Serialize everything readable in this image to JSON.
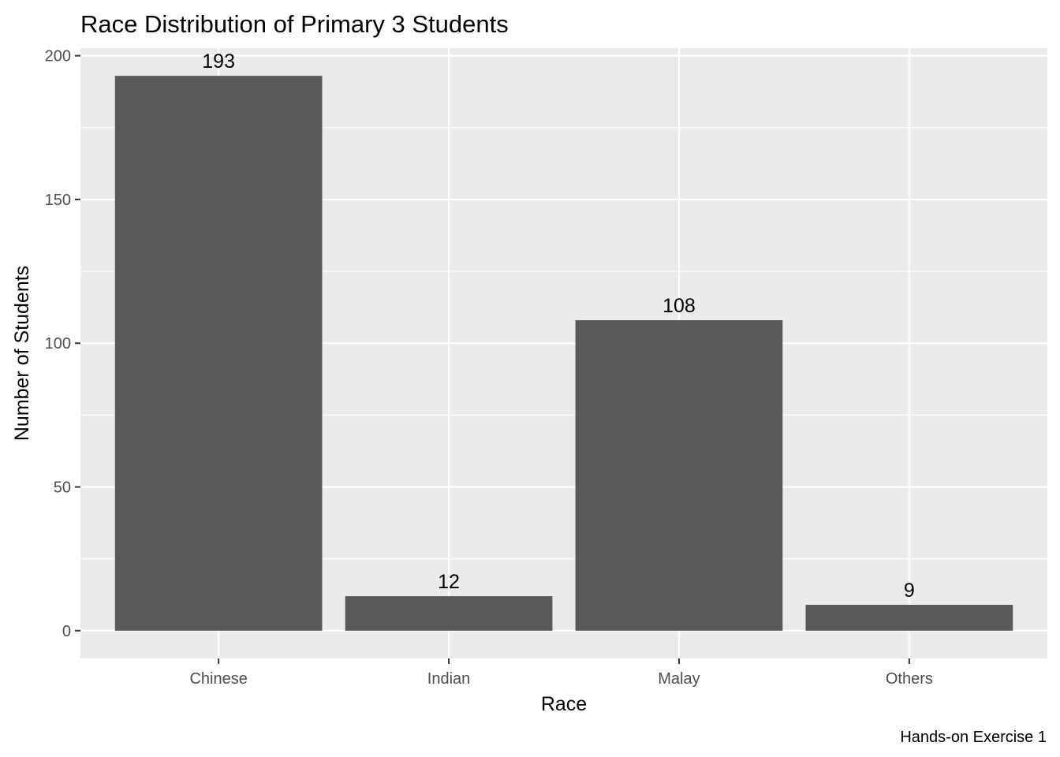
{
  "chart_data": {
    "type": "bar",
    "title": "Race Distribution of Primary 3 Students",
    "xlabel": "Race",
    "ylabel": "Number of Students",
    "caption": "Hands-on Exercise 1",
    "categories": [
      "Chinese",
      "Indian",
      "Malay",
      "Others"
    ],
    "values": [
      193,
      12,
      108,
      9
    ],
    "data_labels": [
      "193",
      "12",
      "108",
      "9"
    ],
    "ylim": [
      -9.65,
      202.65
    ],
    "y_ticks": [
      0,
      50,
      100,
      150,
      200
    ],
    "y_tick_labels": [
      "0",
      "50",
      "100",
      "150",
      "200"
    ],
    "grid": true,
    "colors": {
      "bar": "#595959",
      "panel_background": "#ebebeb",
      "gridline": "#ffffff",
      "tick_label": "#4d4d4d",
      "axis_tick": "#333333",
      "text": "#000000"
    }
  }
}
